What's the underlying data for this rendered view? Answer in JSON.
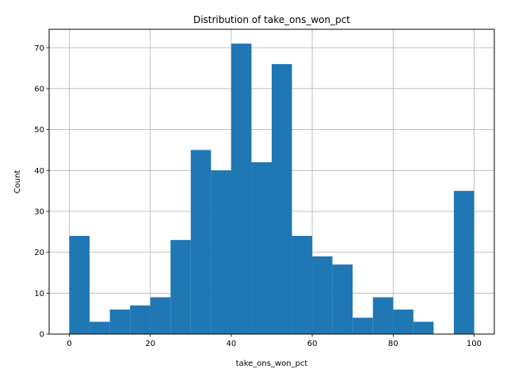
{
  "chart_data": {
    "type": "bar",
    "title": "Distribution of take_ons_won_pct",
    "xlabel": "take_ons_won_pct",
    "ylabel": "Count",
    "bins": [
      {
        "start": 0,
        "end": 5,
        "count": 24
      },
      {
        "start": 5,
        "end": 10,
        "count": 3
      },
      {
        "start": 10,
        "end": 15,
        "count": 6
      },
      {
        "start": 15,
        "end": 20,
        "count": 7
      },
      {
        "start": 20,
        "end": 25,
        "count": 9
      },
      {
        "start": 25,
        "end": 30,
        "count": 23
      },
      {
        "start": 30,
        "end": 35,
        "count": 45
      },
      {
        "start": 35,
        "end": 40,
        "count": 40
      },
      {
        "start": 40,
        "end": 45,
        "count": 71
      },
      {
        "start": 45,
        "end": 50,
        "count": 42
      },
      {
        "start": 50,
        "end": 55,
        "count": 66
      },
      {
        "start": 55,
        "end": 60,
        "count": 24
      },
      {
        "start": 60,
        "end": 65,
        "count": 19
      },
      {
        "start": 65,
        "end": 70,
        "count": 17
      },
      {
        "start": 70,
        "end": 75,
        "count": 4
      },
      {
        "start": 75,
        "end": 80,
        "count": 9
      },
      {
        "start": 80,
        "end": 85,
        "count": 6
      },
      {
        "start": 85,
        "end": 90,
        "count": 3
      },
      {
        "start": 90,
        "end": 95,
        "count": 0
      },
      {
        "start": 95,
        "end": 100,
        "count": 35
      }
    ],
    "xlim": [
      -5,
      105
    ],
    "ylim": [
      0,
      74.5
    ],
    "xticks": [
      "0",
      "20",
      "40",
      "60",
      "80",
      "100"
    ],
    "yticks": [
      "0",
      "10",
      "20",
      "30",
      "40",
      "50",
      "60",
      "70"
    ],
    "grid": true,
    "bar_color": "#1f77b4"
  }
}
